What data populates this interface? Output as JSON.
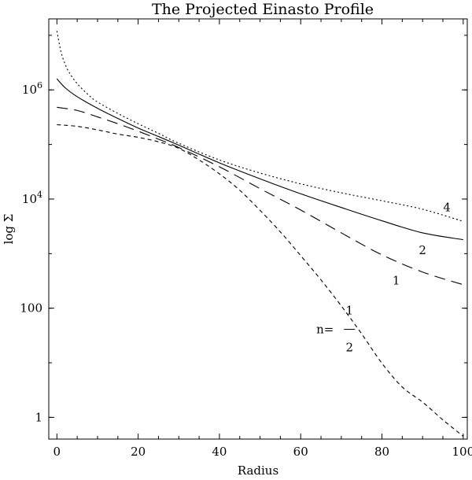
{
  "chart_data": {
    "type": "line",
    "title": "The Projected Einasto Profile",
    "xlabel": "Radius",
    "ylabel": "log Σ",
    "xlim": [
      -2,
      101
    ],
    "ylim": [
      0.4,
      20000000
    ],
    "yscale": "log",
    "grid": false,
    "legend": "none",
    "x_ticks": [
      {
        "value": 0,
        "label": "0"
      },
      {
        "value": 20,
        "label": "20"
      },
      {
        "value": 40,
        "label": "40"
      },
      {
        "value": 60,
        "label": "60"
      },
      {
        "value": 80,
        "label": "80"
      },
      {
        "value": 100,
        "label": "100"
      }
    ],
    "y_ticks": [
      {
        "value": 1,
        "label": "1",
        "sup": ""
      },
      {
        "value": 100,
        "label": "100",
        "sup": ""
      },
      {
        "value": 10000,
        "label": "10",
        "sup": "4"
      },
      {
        "value": 1000000,
        "label": "10",
        "sup": "6"
      }
    ],
    "series": [
      {
        "name": "4",
        "dash": "2,3",
        "x": [
          0,
          1,
          2,
          3,
          5,
          8,
          10,
          15,
          20,
          25,
          30,
          40,
          50,
          60,
          70,
          80,
          90,
          100
        ],
        "y": [
          12000000,
          5000000,
          3000000,
          2100000,
          1300000,
          780000,
          600000,
          370000,
          240000,
          160000,
          105000,
          52000,
          30000,
          19000,
          13000,
          9300,
          6500,
          3900
        ]
      },
      {
        "name": "2",
        "dash": "",
        "x": [
          0,
          2,
          5,
          10,
          15,
          20,
          25,
          30,
          40,
          50,
          60,
          70,
          80,
          90,
          100
        ],
        "y": [
          1600000,
          1100000,
          750000,
          460000,
          300000,
          200000,
          140000,
          97000,
          46000,
          23500,
          12500,
          7000,
          4000,
          2400,
          1800
        ]
      },
      {
        "name": "1",
        "dash": "14,8",
        "x": [
          0,
          5,
          10,
          15,
          20,
          25,
          30,
          40,
          50,
          60,
          70,
          80,
          90,
          100
        ],
        "y": [
          480000,
          420000,
          320000,
          240000,
          175000,
          125000,
          88000,
          39000,
          15500,
          6300,
          2400,
          950,
          460,
          270
        ]
      },
      {
        "name": "n= 1/2",
        "dash": "5,4",
        "x": [
          0,
          5,
          10,
          15,
          20,
          25,
          30,
          35,
          40,
          45,
          50,
          55,
          60,
          65,
          70,
          75,
          80,
          85,
          90,
          95,
          100
        ],
        "y": [
          230000,
          215000,
          185000,
          155000,
          135000,
          112000,
          85000,
          52000,
          29000,
          14500,
          6200,
          2500,
          920,
          330,
          110,
          34,
          9.8,
          3.6,
          1.9,
          0.9,
          0.45
        ]
      }
    ],
    "annotations": [
      {
        "text": "4",
        "x": 96,
        "y": 7000
      },
      {
        "text": "2",
        "x": 90,
        "y": 1150
      },
      {
        "text": "1",
        "x": 83.5,
        "y": 320
      },
      {
        "text": "n=",
        "x": 66,
        "y": 41
      },
      {
        "text": "1",
        "x": 72,
        "y": 91
      },
      {
        "text": "2",
        "x": 72,
        "y": 19
      }
    ]
  }
}
